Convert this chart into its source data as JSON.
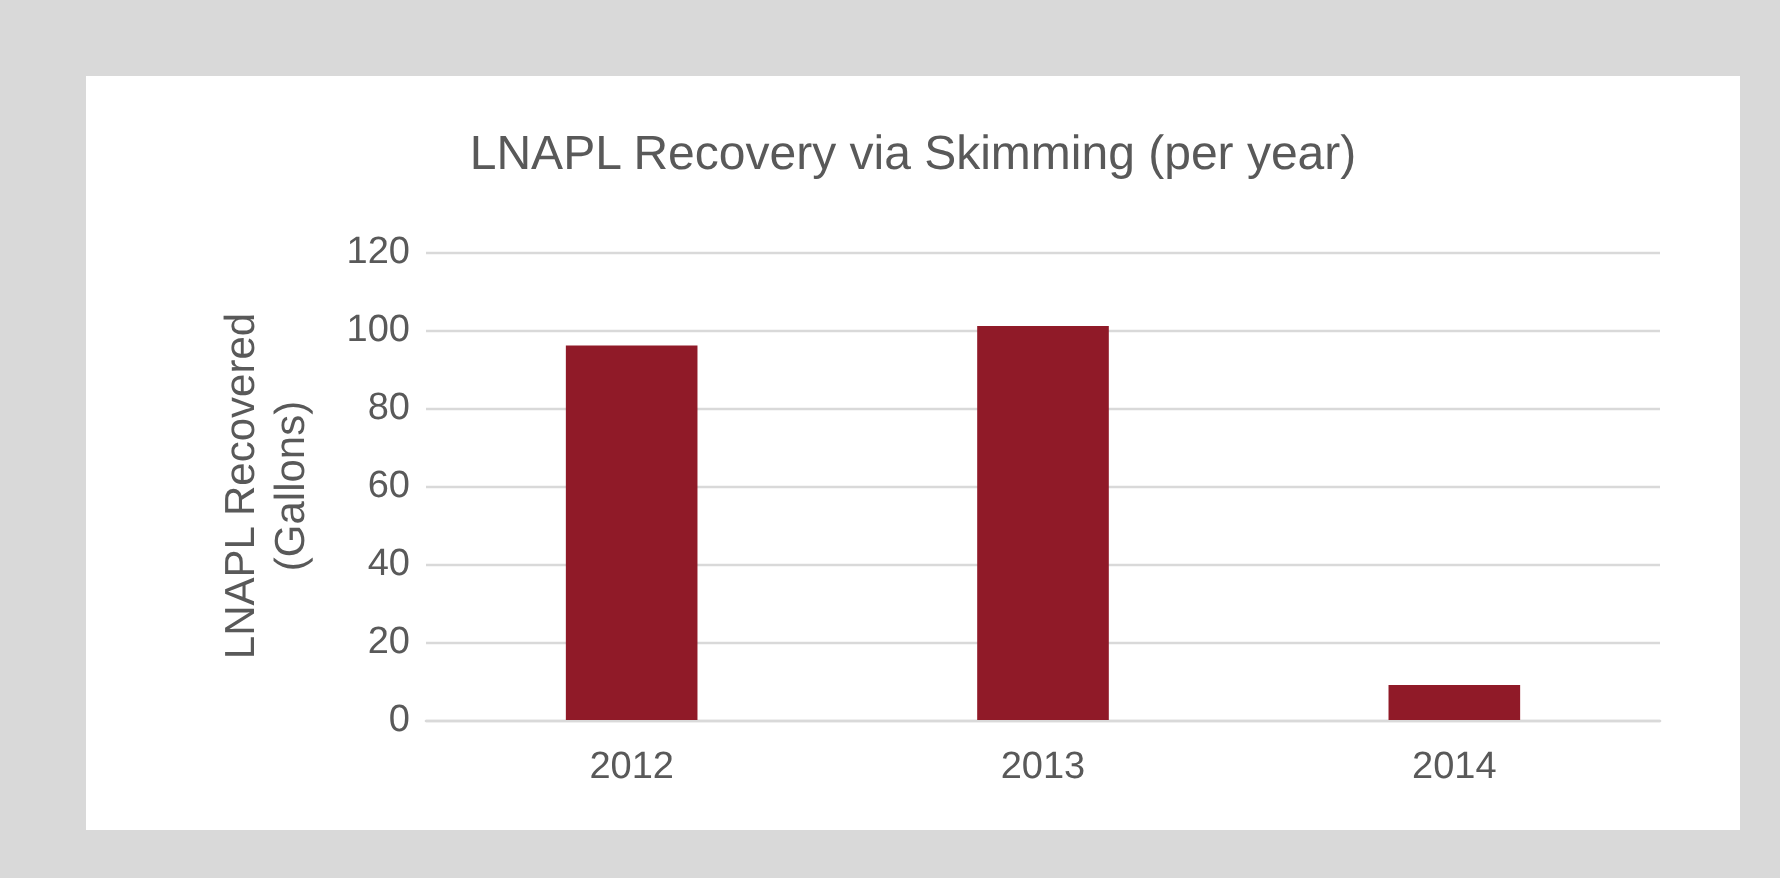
{
  "chart_data": {
    "type": "bar",
    "title": "LNAPL Recovery via Skimming (per year)",
    "ylabel": "LNAPL Recovered\n(Gallons)",
    "categories": [
      "2012",
      "2013",
      "2014"
    ],
    "values": [
      96,
      101,
      9
    ],
    "color": "#901a28",
    "ylim": [
      0,
      120
    ],
    "yticks": [
      0,
      20,
      40,
      60,
      80,
      100,
      120
    ],
    "grid": "y"
  }
}
